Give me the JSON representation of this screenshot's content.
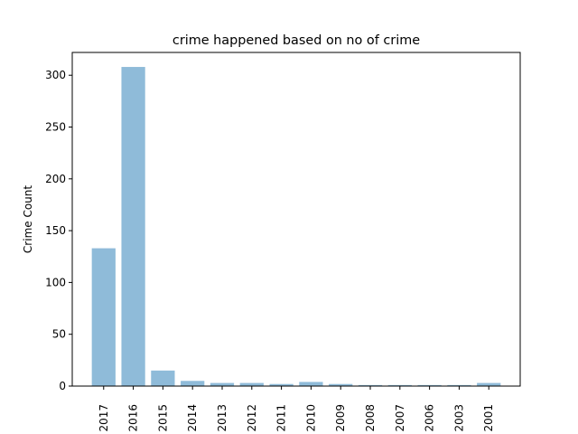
{
  "chart_data": {
    "type": "bar",
    "title": "crime happened based on no of crime",
    "xlabel": "",
    "ylabel": "Crime Count",
    "categories": [
      "2017",
      "2016",
      "2015",
      "2014",
      "2013",
      "2012",
      "2011",
      "2010",
      "2009",
      "2008",
      "2007",
      "2006",
      "2003",
      "2001"
    ],
    "values": [
      133,
      308,
      15,
      5,
      3,
      3,
      2,
      4,
      2,
      1,
      1,
      1,
      1,
      3
    ],
    "ylim": [
      0,
      322
    ],
    "yticks": [
      0,
      50,
      100,
      150,
      200,
      250,
      300
    ],
    "bar_color": "#8fbbd9",
    "grid": false,
    "legend": "none"
  }
}
